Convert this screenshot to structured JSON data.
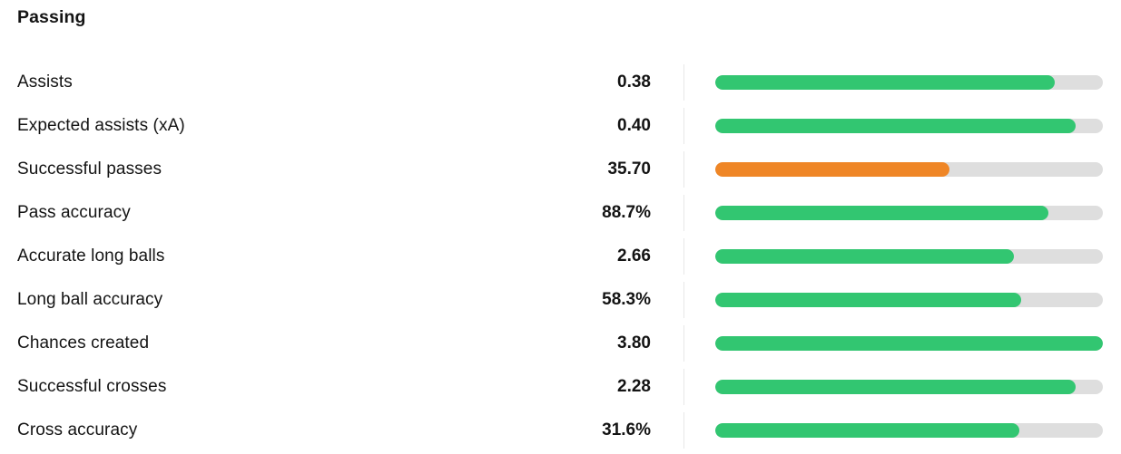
{
  "section": {
    "title": "Passing"
  },
  "colors": {
    "green": "#32c671",
    "orange": "#ef8626",
    "track": "#dedede",
    "divider": "#e7e7e7",
    "text": "#141414",
    "background": "#ffffff"
  },
  "chart_data": {
    "type": "bar",
    "orientation": "horizontal",
    "title": "Passing",
    "categories": [
      "Assists",
      "Expected assists (xA)",
      "Successful passes",
      "Pass accuracy",
      "Accurate long balls",
      "Long ball accuracy",
      "Chances created",
      "Successful crosses",
      "Cross accuracy"
    ],
    "display_values": [
      "0.38",
      "0.40",
      "35.70",
      "88.7%",
      "2.66",
      "58.3%",
      "3.80",
      "2.28",
      "31.6%"
    ],
    "bar_range_pct": [
      0,
      100
    ],
    "rows": [
      {
        "label": "Assists",
        "value": "0.38",
        "fill_pct": 87.5,
        "color": "green"
      },
      {
        "label": "Expected assists (xA)",
        "value": "0.40",
        "fill_pct": 93,
        "color": "green"
      },
      {
        "label": "Successful passes",
        "value": "35.70",
        "fill_pct": 60.5,
        "color": "orange"
      },
      {
        "label": "Pass accuracy",
        "value": "88.7%",
        "fill_pct": 86,
        "color": "green"
      },
      {
        "label": "Accurate long balls",
        "value": "2.66",
        "fill_pct": 77,
        "color": "green"
      },
      {
        "label": "Long ball accuracy",
        "value": "58.3%",
        "fill_pct": 79,
        "color": "green"
      },
      {
        "label": "Chances created",
        "value": "3.80",
        "fill_pct": 100,
        "color": "green"
      },
      {
        "label": "Successful crosses",
        "value": "2.28",
        "fill_pct": 93,
        "color": "green"
      },
      {
        "label": "Cross accuracy",
        "value": "31.6%",
        "fill_pct": 78.5,
        "color": "green"
      }
    ]
  }
}
